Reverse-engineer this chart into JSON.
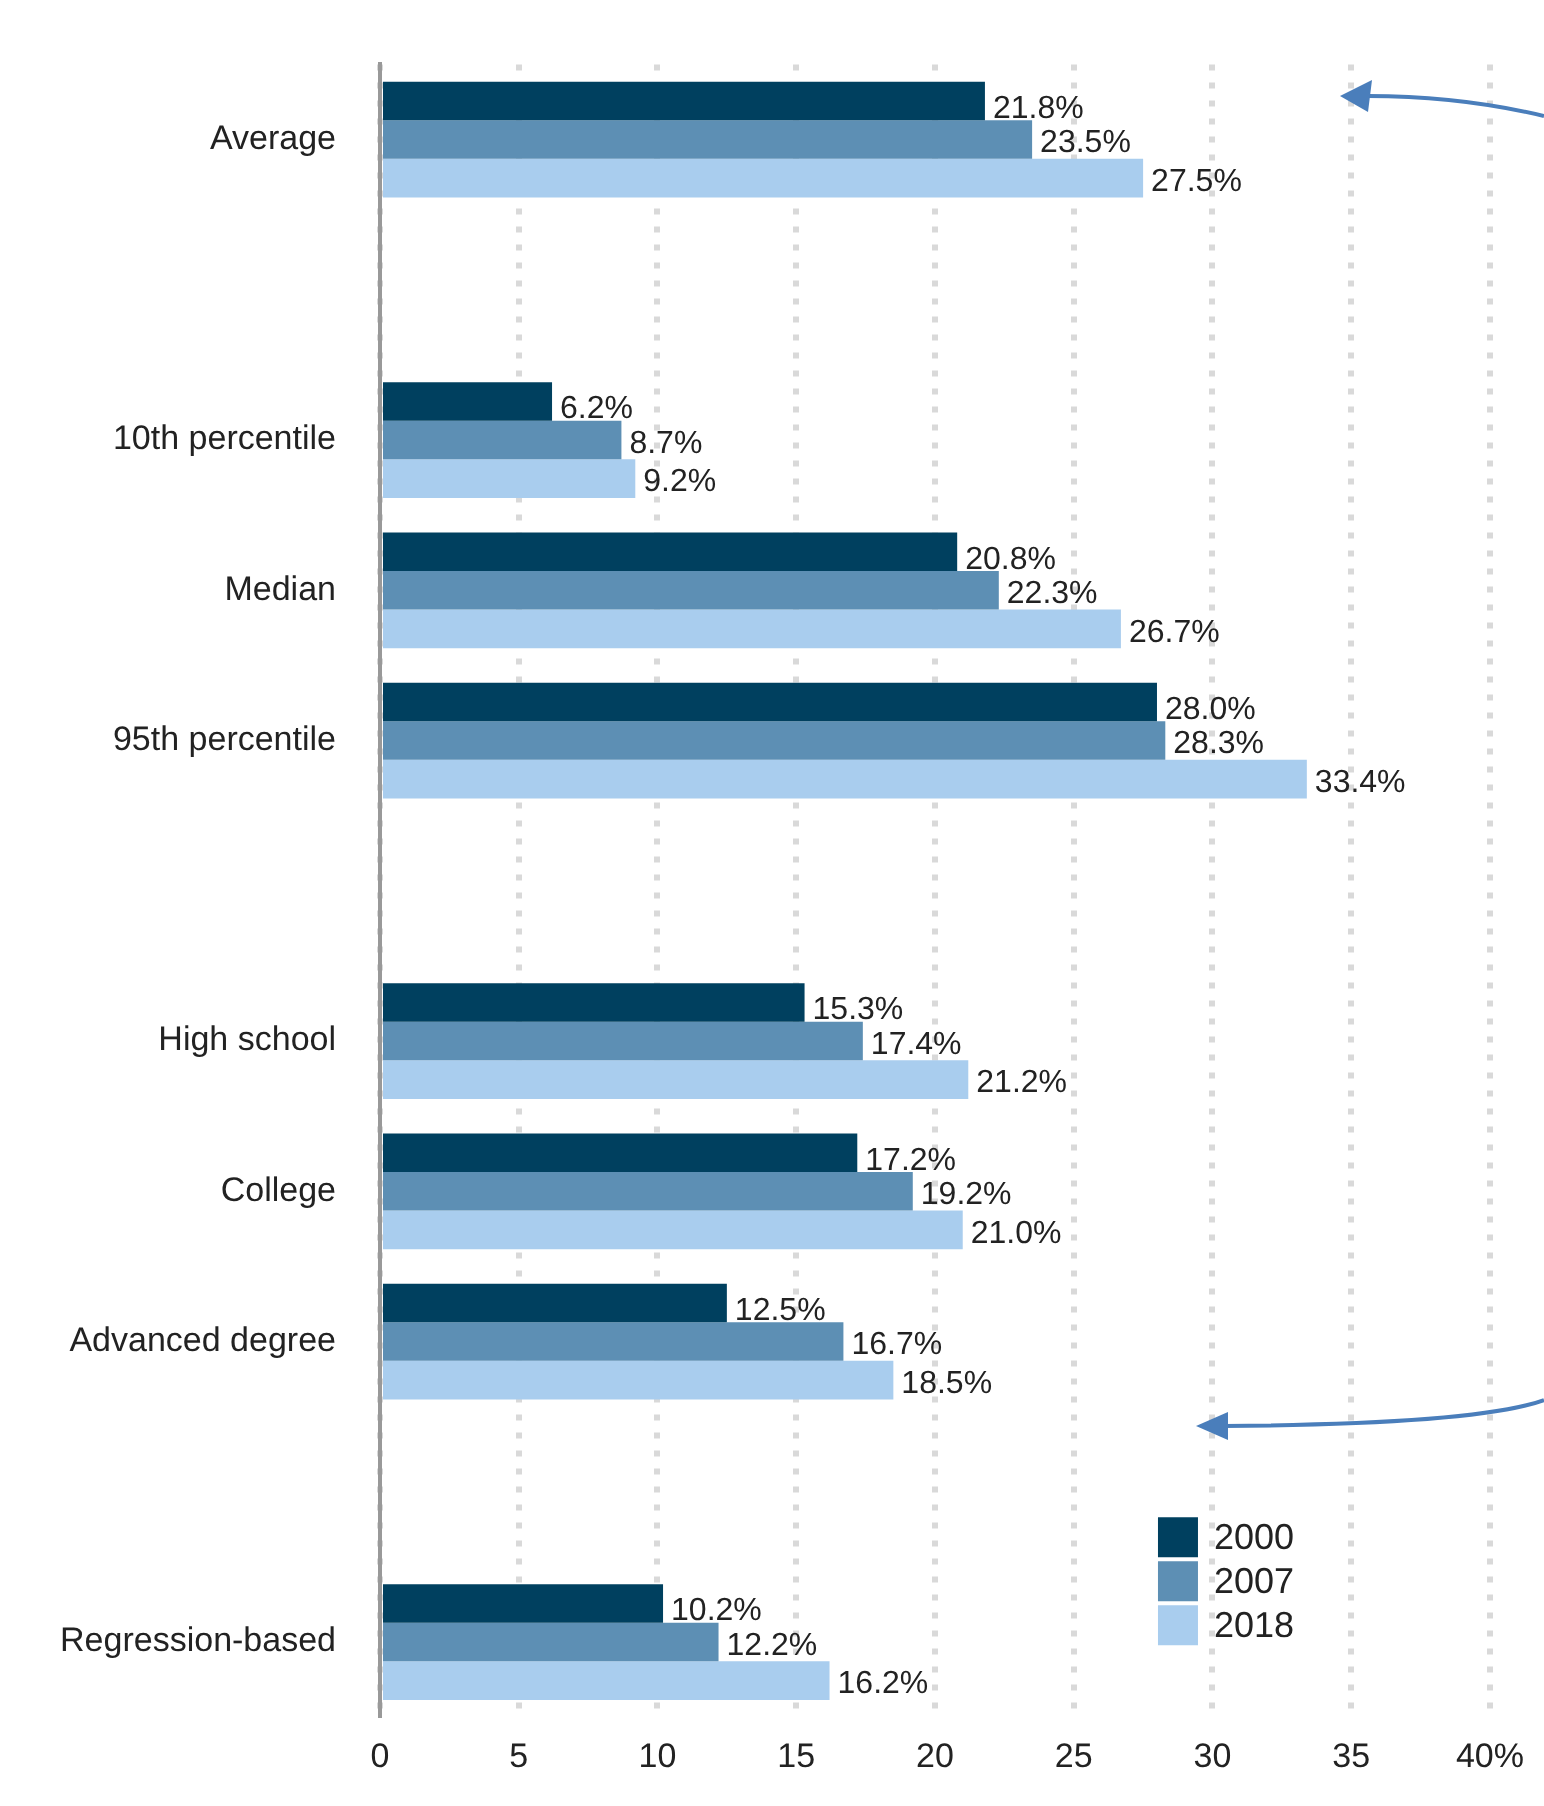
{
  "chart_data": {
    "type": "bar",
    "orientation": "horizontal",
    "categories": [
      "Average",
      null,
      "10th percentile",
      "Median",
      "95th percentile",
      null,
      "High school",
      "College",
      "Advanced degree",
      null,
      "Regression-based"
    ],
    "series": [
      {
        "name": "2000",
        "color": "#00405f",
        "values": [
          21.8,
          null,
          6.2,
          20.8,
          28.0,
          null,
          15.3,
          17.2,
          12.5,
          null,
          10.2
        ],
        "value_labels": [
          "21.8%",
          null,
          "6.2%",
          "20.8%",
          "28.0%",
          null,
          "15.3%",
          "17.2%",
          "12.5%",
          null,
          "10.2%"
        ]
      },
      {
        "name": "2007",
        "color": "#5d8fb4",
        "values": [
          23.5,
          null,
          8.7,
          22.3,
          28.3,
          null,
          17.4,
          19.2,
          16.7,
          null,
          12.2
        ],
        "value_labels": [
          "23.5%",
          null,
          "8.7%",
          "22.3%",
          "28.3%",
          null,
          "17.4%",
          "19.2%",
          "16.7%",
          null,
          "12.2%"
        ]
      },
      {
        "name": "2018",
        "color": "#a9cdee",
        "values": [
          27.5,
          null,
          9.2,
          26.7,
          33.4,
          null,
          21.2,
          21.0,
          18.5,
          null,
          16.2
        ],
        "value_labels": [
          "27.5%",
          null,
          "9.2%",
          "26.7%",
          "33.4%",
          null,
          "21.2%",
          "21.0%",
          "18.5%",
          null,
          "16.2%"
        ]
      }
    ],
    "xlim": [
      0,
      40
    ],
    "xticks": [
      0,
      5,
      10,
      15,
      20,
      25,
      30,
      35,
      {
        "value": 40,
        "label": "40%"
      }
    ],
    "grid": "x",
    "legend": "bottom right"
  }
}
